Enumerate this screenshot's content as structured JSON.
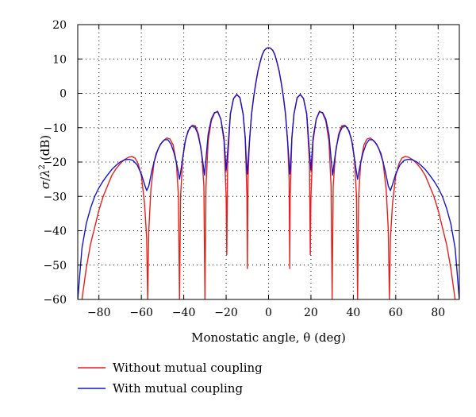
{
  "chart_data": {
    "type": "line",
    "title": "",
    "xlabel": "Monostatic angle, θ (deg)",
    "ylabel_parts": {
      "sigma": "σ",
      "slash": "/",
      "lambda": "λ",
      "sup": "2",
      "unit": " (dB)"
    },
    "xlim": [
      -90,
      90
    ],
    "ylim": [
      -60,
      20
    ],
    "xticks": [
      -80,
      -60,
      -40,
      -20,
      0,
      20,
      40,
      60,
      80
    ],
    "yticks": [
      20,
      10,
      0,
      -10,
      -20,
      -30,
      -40,
      -50,
      -60
    ],
    "xtick_labels": [
      "−80",
      "−60",
      "−40",
      "−20",
      "0",
      "20",
      "40",
      "60",
      "80"
    ],
    "ytick_labels": [
      "20",
      "10",
      "0",
      "−10",
      "−20",
      "−30",
      "−40",
      "−50",
      "−60"
    ],
    "grid": true,
    "grid_style": "dotted",
    "legend_position": "bottom-left, below plot",
    "series": [
      {
        "name": "Without mutual coupling",
        "color": "#e8201c",
        "points": [
          [
            -88,
            -60
          ],
          [
            -86,
            -51
          ],
          [
            -84,
            -44
          ],
          [
            -82,
            -39
          ],
          [
            -80,
            -34
          ],
          [
            -78,
            -30
          ],
          [
            -76,
            -27
          ],
          [
            -74,
            -24
          ],
          [
            -72,
            -22
          ],
          [
            -70,
            -20.5
          ],
          [
            -68,
            -19.3
          ],
          [
            -66,
            -18.6
          ],
          [
            -64.5,
            -18.4
          ],
          [
            -63,
            -18.8
          ],
          [
            -61.5,
            -20.5
          ],
          [
            -60,
            -24
          ],
          [
            -58.5,
            -32
          ],
          [
            -57.5,
            -42
          ],
          [
            -57,
            -60
          ],
          [
            -56.5,
            -40
          ],
          [
            -55.5,
            -28
          ],
          [
            -54,
            -20
          ],
          [
            -52,
            -16
          ],
          [
            -50,
            -14
          ],
          [
            -48,
            -13
          ],
          [
            -46.5,
            -13.3
          ],
          [
            -45,
            -15
          ],
          [
            -43.5,
            -20
          ],
          [
            -42.5,
            -30
          ],
          [
            -42,
            -60
          ],
          [
            -41.5,
            -30
          ],
          [
            -40.5,
            -19
          ],
          [
            -39,
            -13
          ],
          [
            -37.5,
            -10.5
          ],
          [
            -36,
            -9.3
          ],
          [
            -34.5,
            -9.5
          ],
          [
            -33,
            -12
          ],
          [
            -31.5,
            -18
          ],
          [
            -30.5,
            -27
          ],
          [
            -30,
            -60
          ],
          [
            -29.5,
            -27
          ],
          [
            -28.5,
            -14
          ],
          [
            -27,
            -8
          ],
          [
            -25.5,
            -5.8
          ],
          [
            -24,
            -5.2
          ],
          [
            -22.5,
            -7.5
          ],
          [
            -21,
            -14
          ],
          [
            -20,
            -30
          ],
          [
            -19.7,
            -47
          ],
          [
            -19.3,
            -20
          ],
          [
            -18,
            -6
          ],
          [
            -16.5,
            -1.5
          ],
          [
            -15,
            -0.3
          ],
          [
            -13.5,
            -1.2
          ],
          [
            -12,
            -6
          ],
          [
            -11,
            -13
          ],
          [
            -10.2,
            -30
          ],
          [
            -10,
            -51
          ],
          [
            -9.7,
            -25
          ],
          [
            -9,
            -14
          ],
          [
            -8,
            -6
          ],
          [
            -7,
            -1
          ],
          [
            -6,
            3
          ],
          [
            -5,
            6.5
          ],
          [
            -4,
            9
          ],
          [
            -3,
            11.2
          ],
          [
            -2,
            12.5
          ],
          [
            -1,
            13.1
          ],
          [
            0,
            13.3
          ],
          [
            1,
            13.1
          ],
          [
            2,
            12.5
          ],
          [
            3,
            11.2
          ],
          [
            4,
            9
          ],
          [
            5,
            6.5
          ],
          [
            6,
            3
          ],
          [
            7,
            -1
          ],
          [
            8,
            -6
          ],
          [
            9,
            -14
          ],
          [
            9.7,
            -25
          ],
          [
            10,
            -51
          ],
          [
            10.2,
            -30
          ],
          [
            11,
            -13
          ],
          [
            12,
            -6
          ],
          [
            13.5,
            -1.2
          ],
          [
            15,
            -0.3
          ],
          [
            16.5,
            -1.5
          ],
          [
            18,
            -6
          ],
          [
            19.3,
            -20
          ],
          [
            19.7,
            -47
          ],
          [
            20,
            -30
          ],
          [
            21,
            -14
          ],
          [
            22.5,
            -7.5
          ],
          [
            24,
            -5.2
          ],
          [
            25.5,
            -5.8
          ],
          [
            27,
            -8
          ],
          [
            28.5,
            -14
          ],
          [
            29.5,
            -27
          ],
          [
            30,
            -60
          ],
          [
            30.5,
            -27
          ],
          [
            31.5,
            -18
          ],
          [
            33,
            -12
          ],
          [
            34.5,
            -9.5
          ],
          [
            36,
            -9.3
          ],
          [
            37.5,
            -10.5
          ],
          [
            39,
            -13
          ],
          [
            40.5,
            -19
          ],
          [
            41.5,
            -30
          ],
          [
            42,
            -60
          ],
          [
            42.5,
            -30
          ],
          [
            43.5,
            -20
          ],
          [
            45,
            -15
          ],
          [
            46.5,
            -13.3
          ],
          [
            48,
            -13
          ],
          [
            50,
            -14
          ],
          [
            52,
            -16
          ],
          [
            54,
            -20
          ],
          [
            55.5,
            -28
          ],
          [
            56.5,
            -40
          ],
          [
            57,
            -60
          ],
          [
            57.5,
            -42
          ],
          [
            58.5,
            -32
          ],
          [
            60,
            -24
          ],
          [
            61.5,
            -20.5
          ],
          [
            63,
            -18.8
          ],
          [
            64.5,
            -18.4
          ],
          [
            66,
            -18.6
          ],
          [
            68,
            -19.3
          ],
          [
            70,
            -20.5
          ],
          [
            72,
            -22
          ],
          [
            74,
            -24
          ],
          [
            76,
            -27
          ],
          [
            78,
            -30
          ],
          [
            80,
            -34
          ],
          [
            82,
            -39
          ],
          [
            84,
            -44
          ],
          [
            86,
            -51
          ],
          [
            88,
            -60
          ]
        ]
      },
      {
        "name": "With mutual coupling",
        "color": "#1515cc",
        "points": [
          [
            -90,
            -60
          ],
          [
            -88,
            -45
          ],
          [
            -86,
            -38
          ],
          [
            -84,
            -33.5
          ],
          [
            -82,
            -30
          ],
          [
            -80,
            -27.5
          ],
          [
            -78,
            -25.5
          ],
          [
            -76,
            -23.8
          ],
          [
            -74,
            -22.2
          ],
          [
            -72,
            -21
          ],
          [
            -70,
            -20
          ],
          [
            -68,
            -19.4
          ],
          [
            -66,
            -19.2
          ],
          [
            -64,
            -19.5
          ],
          [
            -62,
            -20.8
          ],
          [
            -60,
            -23.5
          ],
          [
            -58.5,
            -26.5
          ],
          [
            -57.5,
            -28.3
          ],
          [
            -56.5,
            -27
          ],
          [
            -55,
            -22.5
          ],
          [
            -53,
            -17.5
          ],
          [
            -51,
            -14.8
          ],
          [
            -49,
            -13.5
          ],
          [
            -47.5,
            -13.5
          ],
          [
            -46,
            -14.8
          ],
          [
            -44.5,
            -17.5
          ],
          [
            -43,
            -21.5
          ],
          [
            -42,
            -25
          ],
          [
            -41,
            -21
          ],
          [
            -39.5,
            -14.5
          ],
          [
            -38,
            -11
          ],
          [
            -36.5,
            -9.6
          ],
          [
            -35,
            -9.6
          ],
          [
            -33.5,
            -11.5
          ],
          [
            -32,
            -15.5
          ],
          [
            -31,
            -20
          ],
          [
            -30.2,
            -23.8
          ],
          [
            -29.5,
            -19
          ],
          [
            -28.5,
            -12
          ],
          [
            -27,
            -7.5
          ],
          [
            -25.5,
            -5.6
          ],
          [
            -24,
            -5.4
          ],
          [
            -22.5,
            -7.5
          ],
          [
            -21,
            -13
          ],
          [
            -20,
            -22.5
          ],
          [
            -19.3,
            -17
          ],
          [
            -18,
            -6
          ],
          [
            -16.5,
            -1.5
          ],
          [
            -15,
            -0.4
          ],
          [
            -13.5,
            -1.3
          ],
          [
            -12,
            -6
          ],
          [
            -11,
            -13
          ],
          [
            -10.3,
            -22
          ],
          [
            -10,
            -23.5
          ],
          [
            -9.7,
            -20
          ],
          [
            -9,
            -14
          ],
          [
            -8,
            -6
          ],
          [
            -7,
            -1
          ],
          [
            -6,
            3
          ],
          [
            -5,
            6.5
          ],
          [
            -4,
            9
          ],
          [
            -3,
            11.2
          ],
          [
            -2,
            12.5
          ],
          [
            -1,
            13.1
          ],
          [
            0,
            13.3
          ],
          [
            1,
            13.1
          ],
          [
            2,
            12.5
          ],
          [
            3,
            11.2
          ],
          [
            4,
            9
          ],
          [
            5,
            6.5
          ],
          [
            6,
            3
          ],
          [
            7,
            -1
          ],
          [
            8,
            -6
          ],
          [
            9,
            -14
          ],
          [
            9.7,
            -20
          ],
          [
            10,
            -23.5
          ],
          [
            10.3,
            -22
          ],
          [
            11,
            -13
          ],
          [
            12,
            -6
          ],
          [
            13.5,
            -1.3
          ],
          [
            15,
            -0.4
          ],
          [
            16.5,
            -1.5
          ],
          [
            18,
            -6
          ],
          [
            19.3,
            -17
          ],
          [
            20,
            -22.5
          ],
          [
            21,
            -13
          ],
          [
            22.5,
            -7.5
          ],
          [
            24,
            -5.4
          ],
          [
            25.5,
            -5.6
          ],
          [
            27,
            -7.5
          ],
          [
            28.5,
            -12
          ],
          [
            29.5,
            -19
          ],
          [
            30.2,
            -23.8
          ],
          [
            31,
            -20
          ],
          [
            32,
            -15.5
          ],
          [
            33.5,
            -11.5
          ],
          [
            35,
            -9.6
          ],
          [
            36.5,
            -9.6
          ],
          [
            38,
            -11
          ],
          [
            39.5,
            -14.5
          ],
          [
            41,
            -21
          ],
          [
            42,
            -25
          ],
          [
            43,
            -21.5
          ],
          [
            44.5,
            -17.5
          ],
          [
            46,
            -14.8
          ],
          [
            47.5,
            -13.5
          ],
          [
            49,
            -13.5
          ],
          [
            51,
            -14.8
          ],
          [
            53,
            -17.5
          ],
          [
            55,
            -22.5
          ],
          [
            56.5,
            -27
          ],
          [
            57.5,
            -28.3
          ],
          [
            58.5,
            -26.5
          ],
          [
            60,
            -23.5
          ],
          [
            62,
            -20.8
          ],
          [
            64,
            -19.5
          ],
          [
            66,
            -19.2
          ],
          [
            68,
            -19.4
          ],
          [
            70,
            -20
          ],
          [
            72,
            -21
          ],
          [
            74,
            -22.2
          ],
          [
            76,
            -23.8
          ],
          [
            78,
            -25.5
          ],
          [
            80,
            -27.5
          ],
          [
            82,
            -30
          ],
          [
            84,
            -33.5
          ],
          [
            86,
            -38
          ],
          [
            88,
            -45
          ],
          [
            90,
            -60
          ]
        ]
      }
    ]
  }
}
